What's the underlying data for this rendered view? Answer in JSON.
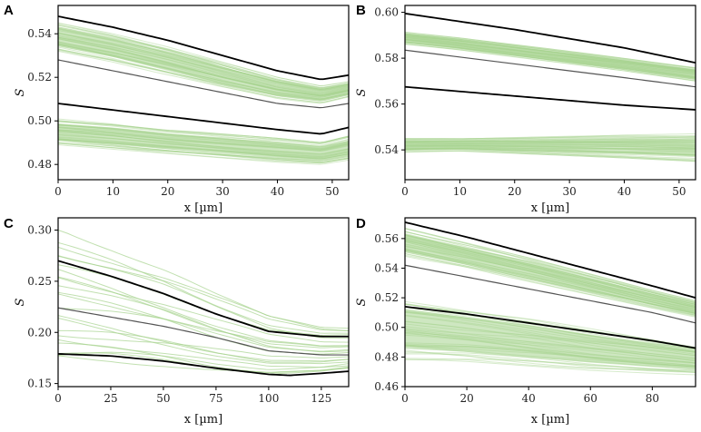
{
  "figure": {
    "colors": {
      "ensemble": "#a6d38e",
      "bound": "#000000",
      "mean": "#555555"
    }
  },
  "chart_data": [
    {
      "type": "line",
      "panel": "A",
      "xlabel": "x [µm]",
      "ylabel": "S",
      "xlim": [
        0,
        53
      ],
      "ylim": [
        0.473,
        0.553
      ],
      "xticks": [
        0,
        10,
        20,
        30,
        40,
        50
      ],
      "xtick_labels": [
        "0",
        "10",
        "20",
        "30",
        "40",
        "50"
      ],
      "yticks": [
        0.48,
        0.5,
        0.52,
        0.54
      ],
      "ytick_labels": [
        "0.48",
        "0.50",
        "0.52",
        "0.54"
      ],
      "series": [
        {
          "name": "upper bound",
          "role": "bound",
          "x": [
            0,
            10,
            20,
            30,
            40,
            48,
            53
          ],
          "y": [
            0.548,
            0.543,
            0.537,
            0.53,
            0.523,
            0.519,
            0.521
          ]
        },
        {
          "name": "mean",
          "role": "mean",
          "x": [
            0,
            10,
            20,
            30,
            40,
            48,
            53
          ],
          "y": [
            0.528,
            0.523,
            0.518,
            0.513,
            0.508,
            0.506,
            0.508
          ]
        },
        {
          "name": "lower bound",
          "role": "bound",
          "x": [
            0,
            10,
            20,
            30,
            40,
            48,
            53
          ],
          "y": [
            0.508,
            0.505,
            0.502,
            0.499,
            0.496,
            0.494,
            0.497
          ]
        }
      ],
      "bands": [
        {
          "name": "upper ensemble",
          "x": [
            0,
            10,
            20,
            30,
            40,
            48,
            53
          ],
          "lo": [
            0.532,
            0.527,
            0.521,
            0.515,
            0.51,
            0.508,
            0.511
          ],
          "hi": [
            0.545,
            0.54,
            0.534,
            0.527,
            0.52,
            0.516,
            0.518
          ]
        },
        {
          "name": "lower ensemble",
          "x": [
            0,
            10,
            20,
            30,
            40,
            48,
            53
          ],
          "lo": [
            0.489,
            0.487,
            0.485,
            0.483,
            0.481,
            0.48,
            0.482
          ],
          "hi": [
            0.501,
            0.499,
            0.496,
            0.494,
            0.492,
            0.49,
            0.493
          ]
        }
      ]
    },
    {
      "type": "line",
      "panel": "B",
      "xlabel": "x [µm]",
      "ylabel": "S",
      "xlim": [
        0,
        53
      ],
      "ylim": [
        0.527,
        0.603
      ],
      "xticks": [
        0,
        10,
        20,
        30,
        40,
        50
      ],
      "xtick_labels": [
        "0",
        "10",
        "20",
        "30",
        "40",
        "50"
      ],
      "yticks": [
        0.54,
        0.56,
        0.58,
        0.6
      ],
      "ytick_labels": [
        "0.54",
        "0.56",
        "0.58",
        "0.60"
      ],
      "series": [
        {
          "name": "upper bound",
          "role": "bound",
          "x": [
            0,
            10,
            20,
            30,
            40,
            53
          ],
          "y": [
            0.5995,
            0.596,
            0.5925,
            0.5885,
            0.5845,
            0.578
          ]
        },
        {
          "name": "mean",
          "role": "mean",
          "x": [
            0,
            10,
            20,
            30,
            40,
            53
          ],
          "y": [
            0.5835,
            0.5805,
            0.5775,
            0.5745,
            0.5715,
            0.5675
          ]
        },
        {
          "name": "lower bound",
          "role": "bound",
          "x": [
            0,
            10,
            20,
            30,
            40,
            53
          ],
          "y": [
            0.5675,
            0.5655,
            0.5635,
            0.5615,
            0.5595,
            0.5575
          ]
        }
      ],
      "bands": [
        {
          "name": "upper ensemble",
          "x": [
            0,
            10,
            20,
            30,
            40,
            53
          ],
          "lo": [
            0.586,
            0.5835,
            0.5805,
            0.5775,
            0.5745,
            0.57
          ],
          "hi": [
            0.5915,
            0.589,
            0.586,
            0.583,
            0.58,
            0.576
          ]
        },
        {
          "name": "lower ensemble",
          "x": [
            0,
            10,
            20,
            30,
            40,
            53
          ],
          "lo": [
            0.539,
            0.5395,
            0.5385,
            0.5375,
            0.5365,
            0.535
          ],
          "hi": [
            0.545,
            0.545,
            0.5455,
            0.546,
            0.5465,
            0.547
          ]
        }
      ]
    },
    {
      "type": "line",
      "panel": "C",
      "xlabel": "x [µm]",
      "ylabel": "S",
      "xlim": [
        0,
        138
      ],
      "ylim": [
        0.147,
        0.312
      ],
      "xticks": [
        0,
        25,
        50,
        75,
        100,
        125
      ],
      "xtick_labels": [
        "0",
        "25",
        "50",
        "75",
        "100",
        "125"
      ],
      "yticks": [
        0.15,
        0.2,
        0.25,
        0.3
      ],
      "ytick_labels": [
        "0.15",
        "0.20",
        "0.25",
        "0.30"
      ],
      "series": [
        {
          "name": "upper bound",
          "role": "bound",
          "x": [
            0,
            25,
            50,
            75,
            100,
            125,
            138
          ],
          "y": [
            0.27,
            0.255,
            0.238,
            0.218,
            0.201,
            0.196,
            0.196
          ]
        },
        {
          "name": "mean",
          "role": "mean",
          "x": [
            0,
            25,
            50,
            75,
            100,
            125,
            138
          ],
          "y": [
            0.224,
            0.215,
            0.206,
            0.195,
            0.182,
            0.178,
            0.178
          ]
        },
        {
          "name": "lower bound",
          "role": "bound",
          "x": [
            0,
            25,
            50,
            75,
            100,
            110,
            125,
            138
          ],
          "y": [
            0.179,
            0.177,
            0.172,
            0.165,
            0.159,
            0.158,
            0.16,
            0.162
          ]
        }
      ],
      "bands": [
        {
          "name": "ensemble",
          "x": [
            0,
            25,
            50,
            75,
            100,
            125,
            138
          ],
          "lo": [
            0.168,
            0.166,
            0.162,
            0.157,
            0.154,
            0.157,
            0.16
          ],
          "hi": [
            0.3,
            0.282,
            0.262,
            0.238,
            0.216,
            0.205,
            0.204
          ]
        }
      ]
    },
    {
      "type": "line",
      "panel": "D",
      "xlabel": "x [µm]",
      "ylabel": "S",
      "xlim": [
        0,
        94
      ],
      "ylim": [
        0.46,
        0.574
      ],
      "xticks": [
        0,
        20,
        40,
        60,
        80
      ],
      "xtick_labels": [
        "0",
        "20",
        "40",
        "60",
        "80"
      ],
      "yticks": [
        0.46,
        0.48,
        0.5,
        0.52,
        0.54,
        0.56
      ],
      "ytick_labels": [
        "0.46",
        "0.48",
        "0.50",
        "0.52",
        "0.54",
        "0.56"
      ],
      "series": [
        {
          "name": "upper bound",
          "role": "bound",
          "x": [
            0,
            20,
            40,
            60,
            80,
            94
          ],
          "y": [
            0.571,
            0.561,
            0.55,
            0.539,
            0.528,
            0.52
          ]
        },
        {
          "name": "mean",
          "role": "mean",
          "x": [
            0,
            20,
            40,
            60,
            80,
            94
          ],
          "y": [
            0.542,
            0.534,
            0.526,
            0.518,
            0.51,
            0.503
          ]
        },
        {
          "name": "lower bound",
          "role": "bound",
          "x": [
            0,
            20,
            40,
            60,
            80,
            94
          ],
          "y": [
            0.514,
            0.509,
            0.503,
            0.497,
            0.491,
            0.486
          ]
        }
      ],
      "bands": [
        {
          "name": "upper ensemble",
          "x": [
            0,
            20,
            40,
            60,
            80,
            94
          ],
          "lo": [
            0.548,
            0.54,
            0.531,
            0.522,
            0.513,
            0.507
          ],
          "hi": [
            0.567,
            0.557,
            0.547,
            0.536,
            0.525,
            0.518
          ]
        },
        {
          "name": "lower ensemble",
          "x": [
            0,
            20,
            40,
            60,
            80,
            94
          ],
          "lo": [
            0.478,
            0.477,
            0.474,
            0.471,
            0.469,
            0.468
          ],
          "hi": [
            0.52,
            0.513,
            0.507,
            0.5,
            0.493,
            0.488
          ]
        }
      ]
    }
  ]
}
